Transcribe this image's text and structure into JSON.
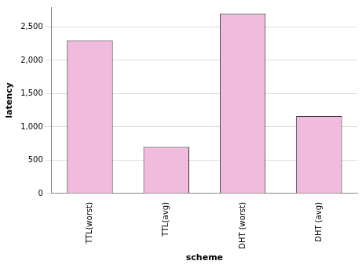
{
  "chart_data": {
    "type": "bar",
    "x_label": "scheme",
    "y_label": "latency",
    "categories": [
      "TTL(worst)",
      "TTL(avg)",
      "DHT (worst)",
      "DHT (avg)"
    ],
    "values": [
      2300,
      700,
      2700,
      1165
    ],
    "color": "#f0bbdd",
    "ylim": [
      0,
      2800
    ],
    "yticks": [
      0,
      500,
      {
        "value": 1000,
        "label": "1,000"
      },
      {
        "value": 1500,
        "label": "1,500"
      },
      {
        "value": 2000,
        "label": "2,000"
      },
      {
        "value": 2500,
        "label": "2,500"
      }
    ],
    "grid": true
  }
}
